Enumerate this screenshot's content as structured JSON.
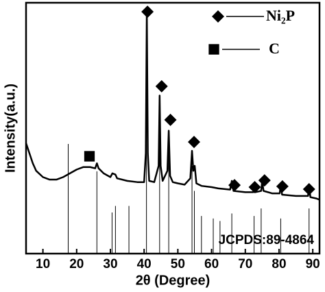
{
  "chart_data": {
    "type": "xrd",
    "x_label": "2θ (Degree)",
    "y_label": "Intensity(a.u.)",
    "xlim": [
      5,
      92
    ],
    "ylim": [
      0,
      100
    ],
    "xticks": [
      10,
      20,
      30,
      40,
      50,
      60,
      70,
      80,
      90
    ],
    "series": [
      {
        "color": "#000000",
        "x": [
          5,
          6,
          7,
          8,
          10,
          12,
          14,
          16,
          18,
          20,
          22,
          24,
          25.5,
          26,
          26.5,
          28,
          30,
          30.6,
          31.5,
          32,
          35,
          38,
          40,
          40.5,
          40.8,
          41.1,
          41.5,
          43,
          44.3,
          44.6,
          44.9,
          45.5,
          46.9,
          47.3,
          47.7,
          48.5,
          50,
          52,
          53.7,
          54.2,
          54.6,
          55,
          55.5,
          57,
          60,
          62,
          65.5,
          66,
          66.5,
          70,
          72.4,
          72.7,
          73,
          74.7,
          75,
          75.4,
          78,
          80.2,
          80.5,
          80.9,
          85,
          88.6,
          88.9,
          89.3,
          91,
          92
        ],
        "y": [
          44,
          40,
          36,
          33,
          30.5,
          29.5,
          29.5,
          30.5,
          32,
          33.5,
          34.5,
          34.5,
          34,
          36,
          34,
          32,
          30.5,
          32,
          31.5,
          30,
          29,
          28.5,
          28.5,
          40,
          97,
          40,
          29,
          28.5,
          35,
          63,
          35,
          29,
          33,
          49,
          31,
          28.5,
          28,
          27.5,
          30,
          41,
          33,
          35,
          28,
          27,
          26.5,
          26,
          25.5,
          29,
          25,
          24.5,
          24.5,
          27,
          24.5,
          25,
          29,
          25,
          24,
          24,
          27.5,
          23.5,
          23,
          23,
          27,
          22.5,
          22,
          21.5
        ]
      }
    ],
    "reference": {
      "label": "JCPDS:89-4864",
      "x": [
        17.5,
        26,
        30.5,
        31.5,
        35.5,
        40.7,
        44.6,
        47.3,
        54.2,
        54.9,
        57,
        60.5,
        62.5,
        66,
        72.6,
        74.7,
        80.5,
        88.9
      ],
      "heights": [
        43.7,
        32.8,
        16.4,
        19,
        19,
        60,
        50,
        40,
        35,
        25,
        15,
        14,
        13,
        16,
        15,
        18,
        14,
        18
      ]
    },
    "annotations": [
      {
        "shape": "diamond",
        "x": [
          41,
          45.2,
          47.8,
          54.8,
          66.8,
          72.8,
          75.7,
          81,
          88.9
        ],
        "y": [
          96.4,
          66.7,
          53.3,
          44.5,
          27.3,
          26.5,
          29.2,
          26.8,
          25.7
        ]
      },
      {
        "shape": "square",
        "x": [
          23.8
        ],
        "y": [
          38.8
        ]
      }
    ],
    "legend": [
      {
        "label": "Ni₂P",
        "shape": "diamond"
      },
      {
        "label": "C",
        "shape": "square"
      }
    ]
  }
}
